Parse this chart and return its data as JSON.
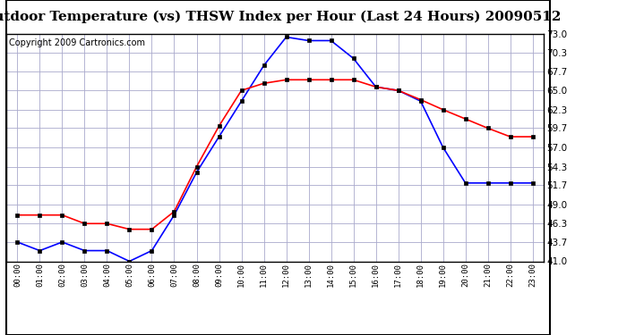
{
  "title": "Outdoor Temperature (vs) THSW Index per Hour (Last 24 Hours) 20090512",
  "copyright": "Copyright 2009 Cartronics.com",
  "hours": [
    "00:00",
    "01:00",
    "02:00",
    "03:00",
    "04:00",
    "05:00",
    "06:00",
    "07:00",
    "08:00",
    "09:00",
    "10:00",
    "11:00",
    "12:00",
    "13:00",
    "14:00",
    "15:00",
    "16:00",
    "17:00",
    "18:00",
    "19:00",
    "20:00",
    "21:00",
    "22:00",
    "23:00"
  ],
  "temp": [
    43.7,
    42.5,
    43.7,
    42.5,
    42.5,
    41.0,
    42.5,
    47.5,
    53.5,
    58.5,
    63.5,
    68.5,
    72.5,
    72.0,
    72.0,
    69.5,
    65.5,
    65.0,
    63.5,
    57.0,
    52.0,
    52.0,
    52.0,
    52.0
  ],
  "thsw": [
    47.5,
    47.5,
    47.5,
    46.3,
    46.3,
    45.5,
    45.5,
    48.0,
    54.3,
    60.0,
    65.0,
    66.0,
    66.5,
    66.5,
    66.5,
    66.5,
    65.5,
    65.0,
    63.7,
    62.3,
    61.0,
    59.7,
    58.5,
    58.5
  ],
  "ylim": [
    41.0,
    73.0
  ],
  "yticks": [
    41.0,
    43.7,
    46.3,
    49.0,
    51.7,
    54.3,
    57.0,
    59.7,
    62.3,
    65.0,
    67.7,
    70.3,
    73.0
  ],
  "temp_color": "#0000FF",
  "thsw_color": "#FF0000",
  "bg_color": "#FFFFFF",
  "plot_bg": "#FFFFFF",
  "grid_color": "#AAAACC",
  "title_fontsize": 11,
  "copyright_fontsize": 7
}
